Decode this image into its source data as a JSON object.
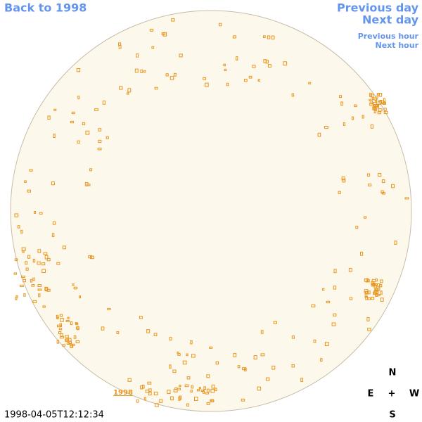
{
  "nav": {
    "back": "Back to 1998",
    "previous_day": "Previous day",
    "next_day": "Next day",
    "previous_hour": "Previous hour",
    "next_hour": "Next hour"
  },
  "image": {
    "year_label": "1998",
    "timestamp": "1998-04-05T12:12:34"
  },
  "compass": {
    "north": "N",
    "east": "E",
    "center": "+",
    "west": "W",
    "south": "S"
  }
}
